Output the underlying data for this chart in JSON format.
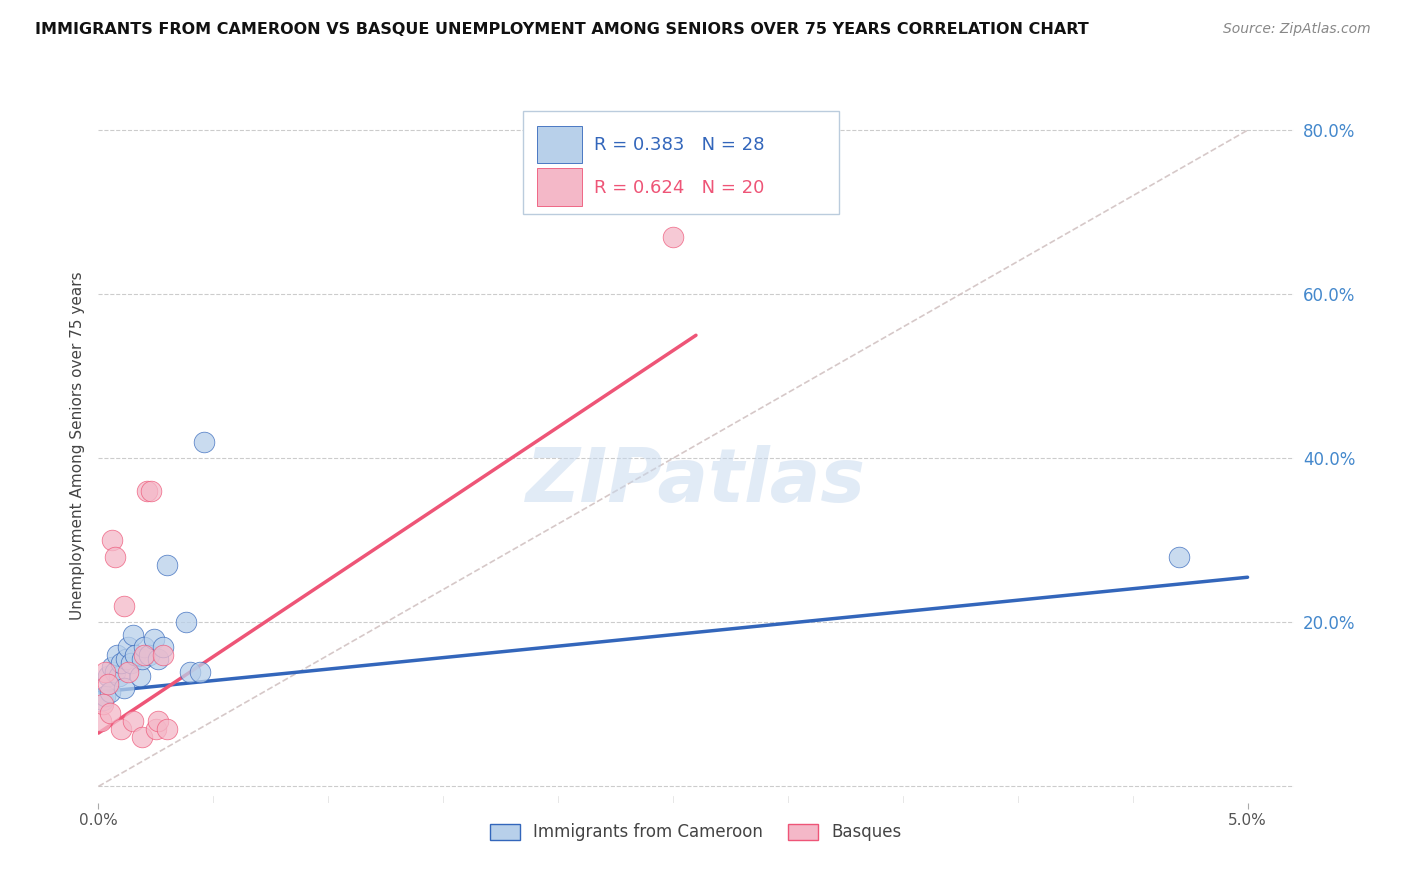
{
  "title": "IMMIGRANTS FROM CAMEROON VS BASQUE UNEMPLOYMENT AMONG SENIORS OVER 75 YEARS CORRELATION CHART",
  "source": "Source: ZipAtlas.com",
  "ylabel": "Unemployment Among Seniors over 75 years",
  "watermark": "ZIPatlas",
  "blue_color": "#b8d0ea",
  "pink_color": "#f4b8c8",
  "blue_line_color": "#3366bb",
  "pink_line_color": "#ee5577",
  "dashed_line_color": "#ccbbbb",
  "blue_scatter": [
    [
      0.02,
      10.5
    ],
    [
      0.03,
      11.0
    ],
    [
      0.04,
      13.5
    ],
    [
      0.05,
      11.5
    ],
    [
      0.06,
      14.5
    ],
    [
      0.07,
      14.0
    ],
    [
      0.08,
      16.0
    ],
    [
      0.09,
      13.5
    ],
    [
      0.1,
      15.0
    ],
    [
      0.11,
      12.0
    ],
    [
      0.12,
      15.5
    ],
    [
      0.13,
      17.0
    ],
    [
      0.14,
      15.0
    ],
    [
      0.15,
      18.5
    ],
    [
      0.16,
      16.0
    ],
    [
      0.18,
      13.5
    ],
    [
      0.19,
      15.5
    ],
    [
      0.2,
      17.0
    ],
    [
      0.22,
      16.0
    ],
    [
      0.24,
      18.0
    ],
    [
      0.26,
      15.5
    ],
    [
      0.28,
      17.0
    ],
    [
      0.3,
      27.0
    ],
    [
      0.38,
      20.0
    ],
    [
      0.4,
      14.0
    ],
    [
      0.44,
      14.0
    ],
    [
      0.46,
      42.0
    ],
    [
      4.7,
      28.0
    ]
  ],
  "pink_scatter": [
    [
      0.01,
      8.0
    ],
    [
      0.02,
      10.0
    ],
    [
      0.03,
      14.0
    ],
    [
      0.04,
      12.5
    ],
    [
      0.05,
      9.0
    ],
    [
      0.06,
      30.0
    ],
    [
      0.07,
      28.0
    ],
    [
      0.1,
      7.0
    ],
    [
      0.11,
      22.0
    ],
    [
      0.13,
      14.0
    ],
    [
      0.15,
      8.0
    ],
    [
      0.19,
      6.0
    ],
    [
      0.2,
      16.0
    ],
    [
      0.21,
      36.0
    ],
    [
      0.23,
      36.0
    ],
    [
      0.25,
      7.0
    ],
    [
      0.26,
      8.0
    ],
    [
      0.28,
      16.0
    ],
    [
      0.3,
      7.0
    ],
    [
      2.5,
      67.0
    ]
  ],
  "blue_line_x": [
    0.0,
    5.0
  ],
  "blue_line_y": [
    11.5,
    25.5
  ],
  "pink_line_x": [
    0.0,
    2.6
  ],
  "pink_line_y": [
    6.5,
    55.0
  ],
  "dashed_line_x": [
    0.0,
    5.0
  ],
  "dashed_line_y": [
    0.0,
    80.0
  ],
  "xlim": [
    0.0,
    5.2
  ],
  "ylim": [
    -2.0,
    85.0
  ],
  "xticks": [
    0.0,
    5.0
  ],
  "xticklabels": [
    "0.0%",
    "5.0%"
  ],
  "right_ticks": [
    0.0,
    20.0,
    40.0,
    60.0,
    80.0
  ],
  "right_labels": [
    "",
    "20.0%",
    "40.0%",
    "60.0%",
    "80.0%"
  ],
  "grid_lines_y": [
    0.0,
    20.0,
    40.0,
    60.0,
    80.0
  ],
  "legend_text_r1": "R = 0.383",
  "legend_text_n1": "N = 28",
  "legend_text_r2": "R = 0.624",
  "legend_text_n2": "N = 20",
  "legend_label1": "Immigrants from Cameroon",
  "legend_label2": "Basques"
}
